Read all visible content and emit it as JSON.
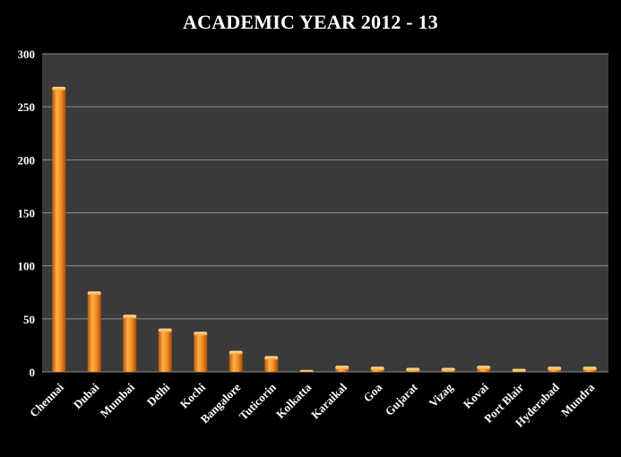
{
  "chart_data": {
    "type": "bar",
    "title": "ACADEMIC YEAR 2012 - 13",
    "xlabel": "",
    "ylabel": "",
    "categories": [
      "Chennai",
      "Dubai",
      "Mumbai",
      "Delhi",
      "Kochi",
      "Bangalore",
      "Tuticorin",
      "Kolkatta",
      "Karaikal",
      "Goa",
      "Gujarat",
      "Vizag",
      "Kovai",
      "Port Blair",
      "Hyderabad",
      "Mundra"
    ],
    "values": [
      268,
      75,
      53,
      40,
      37,
      19,
      14,
      1,
      5,
      4,
      3,
      3,
      5,
      2,
      4,
      4
    ],
    "ylim": [
      0,
      300
    ],
    "yticks": [
      "0",
      "50",
      "100",
      "150",
      "200",
      "250",
      "300"
    ],
    "grid": true,
    "legend": "none",
    "colors": {
      "page_background": "#000000",
      "plot_background": "#3a3a3a",
      "gridline": "#8c8c8c",
      "bar": "#f08a1c",
      "text": "#ffffff"
    }
  }
}
